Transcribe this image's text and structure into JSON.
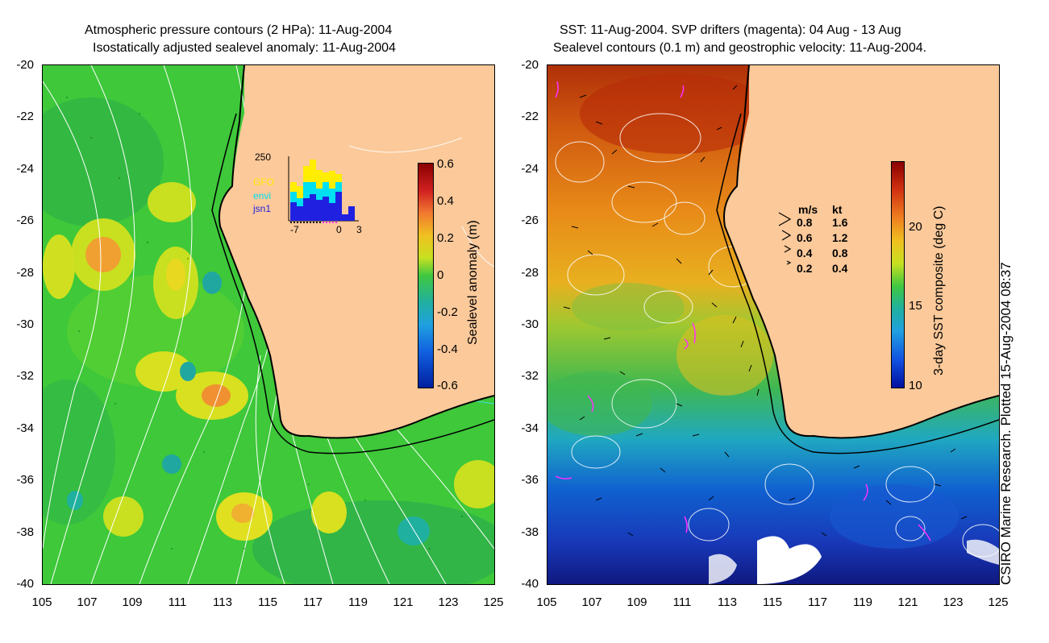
{
  "left": {
    "title_line1": "Atmospheric pressure contours (2 HPa): 11-Aug-2004",
    "title_line2": "Isostatically adjusted sealevel anomaly: 11-Aug-2004",
    "colorbar_label": "Sealevel anomaly (m)",
    "colorbar_ticks": [
      "0.6",
      "0.4",
      "0.2",
      "0",
      "-0.2",
      "-0.4",
      "-0.6"
    ],
    "inset": {
      "ymax": "250",
      "legend": [
        {
          "name": "GFO",
          "color": "#ffee00"
        },
        {
          "name": "envi",
          "color": "#00e0f0"
        },
        {
          "name": "jsn1",
          "color": "#2020e0"
        }
      ],
      "x_ticks": [
        "-7",
        "0",
        "3"
      ]
    }
  },
  "right": {
    "title_line1": "SST: 11-Aug-2004. SVP drifters (magenta): 04 Aug - 13 Aug",
    "title_line2": "Sealevel contours (0.1 m) and geostrophic velocity: 11-Aug-2004.",
    "colorbar_label": "3-day SST composite (deg C)",
    "colorbar_ticks": [
      "20",
      "15",
      "10"
    ],
    "speed_legend": {
      "header_ms": "m/s",
      "header_kt": "kt",
      "rows": [
        {
          "ms": "0.8",
          "kt": "1.6"
        },
        {
          "ms": "0.6",
          "kt": "1.2"
        },
        {
          "ms": "0.4",
          "kt": "0.8"
        },
        {
          "ms": "0.2",
          "kt": "0.4"
        }
      ]
    }
  },
  "axes": {
    "y_ticks": [
      "-20",
      "-22",
      "-24",
      "-26",
      "-28",
      "-30",
      "-32",
      "-34",
      "-36",
      "-38",
      "-40"
    ],
    "x_ticks": [
      "105",
      "107",
      "109",
      "111",
      "113",
      "115",
      "117",
      "119",
      "121",
      "123",
      "125"
    ]
  },
  "credit": "CSIRO Marine Research. Plotted 15-Aug-2004 08:37",
  "colors": {
    "land": "#fbc99a",
    "sealevel_bg": "#3ec83a",
    "sst_warm": "#c84a10",
    "sst_cold": "#1038c0",
    "contour_white": "#ffffff",
    "contour_cyan": "#40e0e0",
    "drifters": "#ff30ff"
  }
}
